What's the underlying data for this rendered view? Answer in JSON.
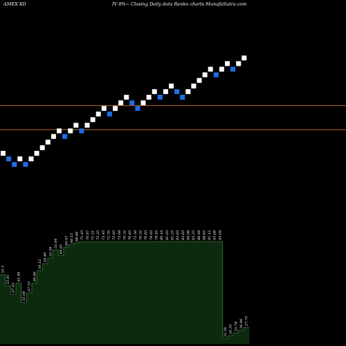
{
  "header": {
    "symbol": "AMEX  XD",
    "caption": "IV 8%~  Closing Daily data  Renko  charts MunafaSutra.com"
  },
  "colors": {
    "background": "#000000",
    "up_brick": "#ffffff",
    "down_brick": "#1e6ee6",
    "level_line": "#b5651d",
    "volume_fill": "#0e2a0e",
    "volume_stroke": "#3a7a3a"
  },
  "chart_data": {
    "type": "renko",
    "bricks": [
      {
        "dir": "up",
        "level": 0
      },
      {
        "dir": "down",
        "level": -1
      },
      {
        "dir": "down",
        "level": -2
      },
      {
        "dir": "up",
        "level": -1
      },
      {
        "dir": "down",
        "level": -2
      },
      {
        "dir": "up",
        "level": -1
      },
      {
        "dir": "up",
        "level": 0
      },
      {
        "dir": "up",
        "level": 1
      },
      {
        "dir": "up",
        "level": 2
      },
      {
        "dir": "up",
        "level": 3
      },
      {
        "dir": "up",
        "level": 4
      },
      {
        "dir": "down",
        "level": 3
      },
      {
        "dir": "up",
        "level": 4
      },
      {
        "dir": "up",
        "level": 5
      },
      {
        "dir": "down",
        "level": 4
      },
      {
        "dir": "up",
        "level": 5
      },
      {
        "dir": "up",
        "level": 6
      },
      {
        "dir": "up",
        "level": 7
      },
      {
        "dir": "up",
        "level": 8
      },
      {
        "dir": "down",
        "level": 7
      },
      {
        "dir": "up",
        "level": 8
      },
      {
        "dir": "up",
        "level": 9
      },
      {
        "dir": "up",
        "level": 10
      },
      {
        "dir": "down",
        "level": 9
      },
      {
        "dir": "down",
        "level": 8
      },
      {
        "dir": "up",
        "level": 9
      },
      {
        "dir": "up",
        "level": 10
      },
      {
        "dir": "up",
        "level": 11
      },
      {
        "dir": "down",
        "level": 10
      },
      {
        "dir": "up",
        "level": 11
      },
      {
        "dir": "up",
        "level": 12
      },
      {
        "dir": "down",
        "level": 11
      },
      {
        "dir": "down",
        "level": 10
      },
      {
        "dir": "up",
        "level": 11
      },
      {
        "dir": "up",
        "level": 12
      },
      {
        "dir": "up",
        "level": 13
      },
      {
        "dir": "up",
        "level": 14
      },
      {
        "dir": "up",
        "level": 15
      },
      {
        "dir": "down",
        "level": 14
      },
      {
        "dir": "up",
        "level": 15
      },
      {
        "dir": "up",
        "level": 16
      },
      {
        "dir": "down",
        "level": 15
      },
      {
        "dir": "up",
        "level": 16
      },
      {
        "dir": "up",
        "level": 17
      }
    ],
    "reference_levels": [
      8.5,
      4.2
    ],
    "volume_relative": [
      0.5,
      0.42,
      0.36,
      0.44,
      0.3,
      0.37,
      0.44,
      0.53,
      0.58,
      0.62,
      0.68,
      0.64,
      0.7,
      0.72,
      0.73,
      0.74,
      0.74,
      0.74,
      0.74,
      0.74,
      0.74,
      0.74,
      0.74,
      0.74,
      0.74,
      0.74,
      0.74,
      0.74,
      0.74,
      0.74,
      0.74,
      0.74,
      0.74,
      0.74,
      0.74,
      0.74,
      0.74,
      0.74,
      0.74,
      0.74,
      0.74,
      0.74,
      0.04,
      0.06,
      0.08,
      0.1,
      0.12
    ],
    "volume_labels": [
      "55.3",
      "55.41",
      "47.45",
      "41.06",
      "35.08",
      "47.53",
      "46.06",
      "54.12",
      "54.46",
      "55.59",
      "55.04",
      "64.61",
      "69.07",
      "66.15",
      "68.66",
      "71.45",
      "70.07",
      "71.51",
      "72.35",
      "73.45",
      "72.35",
      "72.85",
      "73.08",
      "74.52",
      "76.85",
      "75.56",
      "76.52",
      "76.85",
      "78.03",
      "78.45",
      "80.16",
      "81.03",
      "81.25",
      "82.03",
      "83.65",
      "84.98",
      "85.25",
      "86.48",
      "88.65",
      "91.12",
      "93.08",
      "95.04",
      "22.56",
      "24.35",
      "25.78",
      "26.96",
      "27.75"
    ]
  }
}
